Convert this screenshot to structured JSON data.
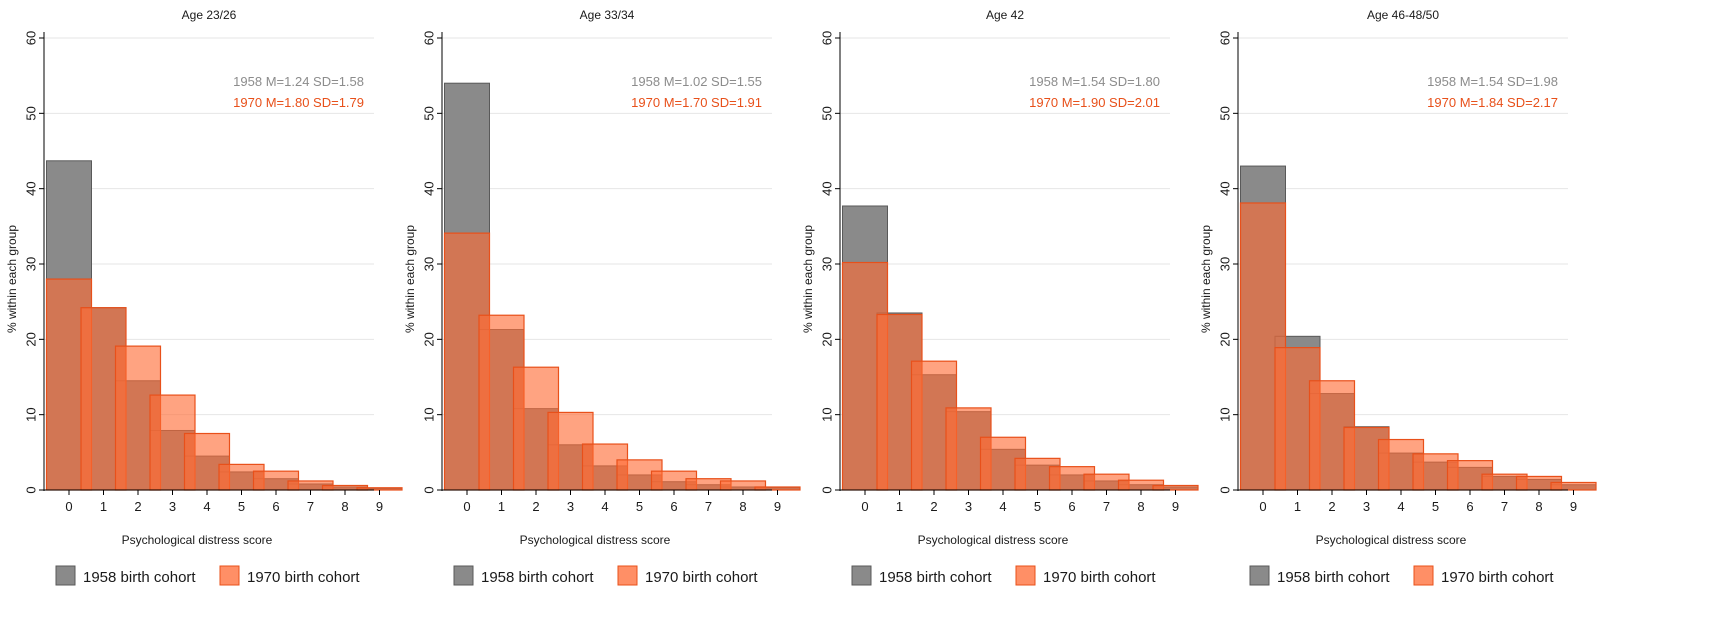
{
  "chart_data": [
    {
      "type": "bar",
      "title": "Age 23/26",
      "xlabel": "Psychological distress score",
      "ylabel": "% within each group",
      "categories": [
        "0",
        "1",
        "2",
        "3",
        "4",
        "5",
        "6",
        "7",
        "8",
        "9"
      ],
      "ylim": [
        0,
        60
      ],
      "yticks": [
        "0",
        "10",
        "20",
        "30",
        "40",
        "50",
        "60"
      ],
      "grid": true,
      "series": [
        {
          "name": "1958 birth cohort",
          "values": [
            43.7,
            24.2,
            14.5,
            7.9,
            4.5,
            2.4,
            1.5,
            0.8,
            0.4,
            0.2
          ]
        },
        {
          "name": "1970 birth cohort",
          "values": [
            28.0,
            24.2,
            19.1,
            12.6,
            7.5,
            3.4,
            2.5,
            1.2,
            0.6,
            0.3
          ]
        }
      ],
      "annotations": [
        "1958 M=1.24 SD=1.58",
        "1970 M=1.80 SD=1.79"
      ],
      "legend": {
        "position": "bottom",
        "labels": [
          "1958 birth cohort",
          "1970 birth cohort"
        ]
      }
    },
    {
      "type": "bar",
      "title": "Age 33/34",
      "xlabel": "Psychological distress score",
      "ylabel": "% within each group",
      "categories": [
        "0",
        "1",
        "2",
        "3",
        "4",
        "5",
        "6",
        "7",
        "8",
        "9"
      ],
      "ylim": [
        0,
        60
      ],
      "yticks": [
        "0",
        "10",
        "20",
        "30",
        "40",
        "50",
        "60"
      ],
      "grid": true,
      "series": [
        {
          "name": "1958 birth cohort",
          "values": [
            54.0,
            21.3,
            10.8,
            6.0,
            3.2,
            2.0,
            1.1,
            0.7,
            0.4,
            0.3
          ]
        },
        {
          "name": "1970 birth cohort",
          "values": [
            34.1,
            23.2,
            16.3,
            10.3,
            6.1,
            4.0,
            2.5,
            1.5,
            1.2,
            0.4
          ]
        }
      ],
      "annotations": [
        "1958 M=1.02 SD=1.55",
        "1970 M=1.70 SD=1.91"
      ],
      "legend": {
        "position": "bottom",
        "labels": [
          "1958 birth cohort",
          "1970 birth cohort"
        ]
      }
    },
    {
      "type": "bar",
      "title": "Age 42",
      "xlabel": "Psychological distress score",
      "ylabel": "% within each group",
      "categories": [
        "0",
        "1",
        "2",
        "3",
        "4",
        "5",
        "6",
        "7",
        "8",
        "9"
      ],
      "ylim": [
        0,
        60
      ],
      "yticks": [
        "0",
        "10",
        "20",
        "30",
        "40",
        "50",
        "60"
      ],
      "grid": true,
      "series": [
        {
          "name": "1958 birth cohort",
          "values": [
            37.7,
            23.5,
            15.3,
            10.4,
            5.4,
            3.3,
            2.0,
            1.2,
            0.7,
            0.4
          ]
        },
        {
          "name": "1970 birth cohort",
          "values": [
            30.2,
            23.3,
            17.1,
            10.9,
            7.0,
            4.2,
            3.1,
            2.1,
            1.3,
            0.6
          ]
        }
      ],
      "annotations": [
        "1958 M=1.54 SD=1.80",
        "1970 M=1.90 SD=2.01"
      ],
      "legend": {
        "position": "bottom",
        "labels": [
          "1958 birth cohort",
          "1970 birth cohort"
        ]
      }
    },
    {
      "type": "bar",
      "title": "Age 46-48/50",
      "xlabel": "Psychological distress score",
      "ylabel": "% within each group",
      "categories": [
        "0",
        "1",
        "2",
        "3",
        "4",
        "5",
        "6",
        "7",
        "8",
        "9"
      ],
      "ylim": [
        0,
        60
      ],
      "yticks": [
        "0",
        "10",
        "20",
        "30",
        "40",
        "50",
        "60"
      ],
      "grid": true,
      "series": [
        {
          "name": "1958 birth cohort",
          "values": [
            43.0,
            20.4,
            12.8,
            8.4,
            4.9,
            3.7,
            3.0,
            1.8,
            1.4,
            0.7
          ]
        },
        {
          "name": "1970 birth cohort",
          "values": [
            38.1,
            18.9,
            14.5,
            8.3,
            6.7,
            4.8,
            3.9,
            2.1,
            1.8,
            1.0
          ]
        }
      ],
      "annotations": [
        "1958 M=1.54 SD=1.98",
        "1970 M=1.84 SD=2.17"
      ],
      "legend": {
        "position": "bottom",
        "labels": [
          "1958 birth cohort",
          "1970 birth cohort"
        ]
      }
    }
  ],
  "colors": {
    "cohort_1958_fill": "#8a8a8a",
    "cohort_1958_stroke": "#595959",
    "cohort_1970_fill": "#ff6a33",
    "cohort_1970_stroke": "#e8501a",
    "annotation_1958": "#8c8c8c",
    "annotation_1970": "#e8501a",
    "grid": "#e6e6e6",
    "axis": "#000000"
  }
}
